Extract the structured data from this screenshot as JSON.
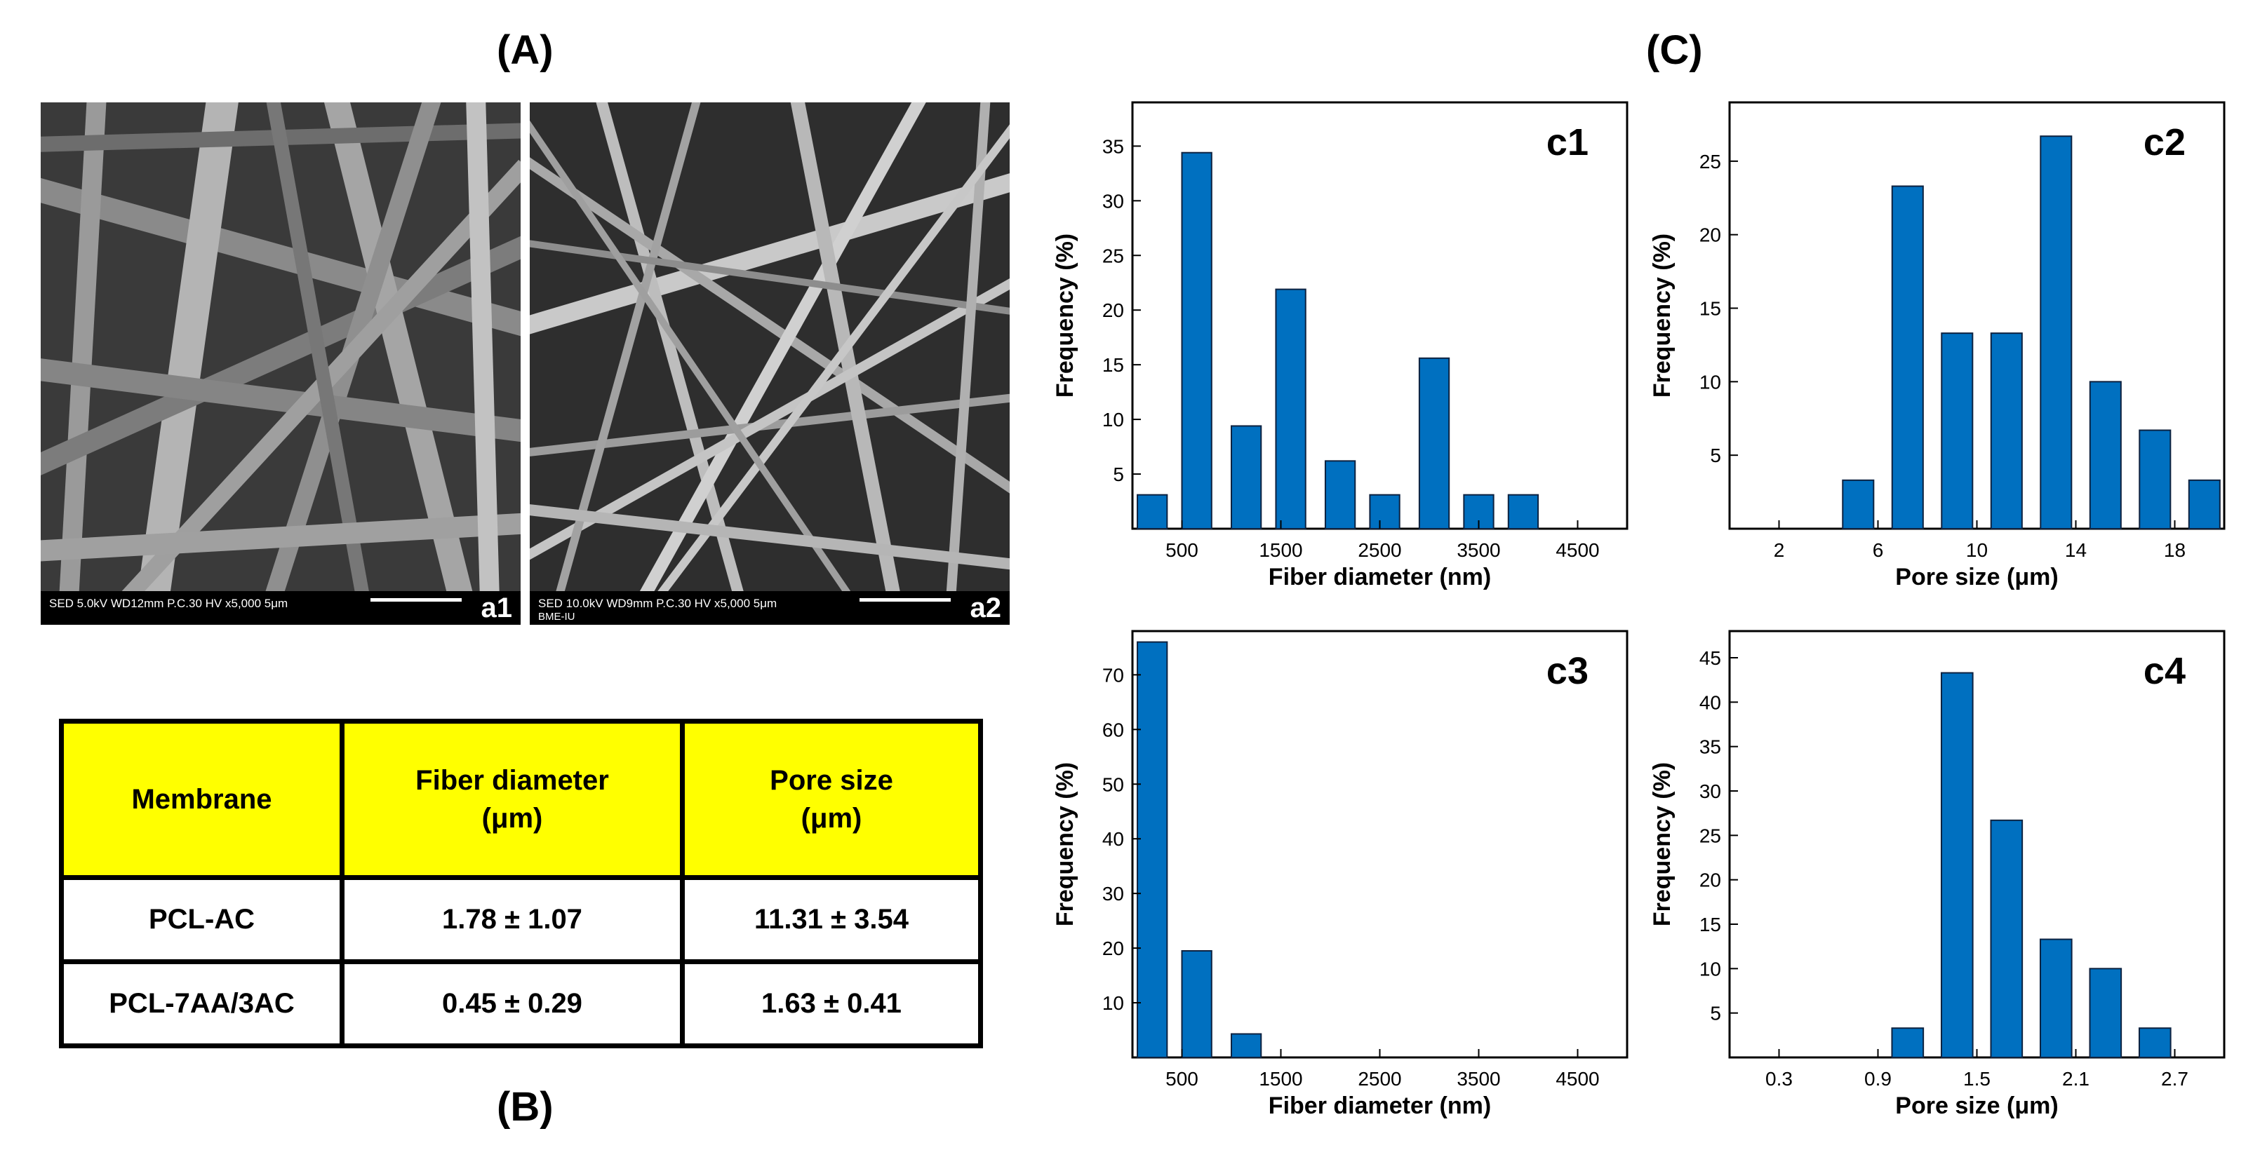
{
  "labels": {
    "A": "(A)",
    "B": "(B)",
    "C": "(C)"
  },
  "sem": [
    {
      "letter": "a1",
      "info": "SED 5.0kV  WD12mm P.C.30  HV     x5,000      5μm",
      "info2": ""
    },
    {
      "letter": "a2",
      "info": "SED 10.0kV WD9mm   P.C.30  HV     x5,000      5μm",
      "info2": "BME-IU"
    }
  ],
  "table": {
    "headers": [
      "Membrane",
      "Fiber diameter",
      "(μm)",
      "Pore size",
      "(μm)"
    ],
    "rows": [
      [
        "PCL-AC",
        "1.78 ± 1.07",
        "11.31 ± 3.54"
      ],
      [
        "PCL-7AA/3AC",
        "0.45 ± 0.29",
        "1.63 ± 0.41"
      ]
    ]
  },
  "colors": {
    "bar": "#0070c0",
    "bar_edge": "#0d2240",
    "table_header": "#ffff00"
  },
  "chart_data": [
    {
      "type": "bar",
      "id": "c1",
      "panel_label": "c1",
      "xlabel": "Fiber diameter (nm)",
      "ylabel": "Frequency (%)",
      "xlim": [
        0,
        5000
      ],
      "ylim": [
        0,
        39
      ],
      "xticks": [
        500,
        1500,
        2500,
        3500,
        4500
      ],
      "yticks": [
        5,
        10,
        15,
        20,
        25,
        30,
        35
      ],
      "bin_width": 300,
      "x": [
        200,
        650,
        1150,
        1600,
        2100,
        2550,
        3050,
        3500,
        3950,
        4400
      ],
      "values": [
        3.1,
        34.4,
        9.4,
        21.9,
        6.2,
        3.1,
        15.6,
        3.1,
        3.1,
        0
      ]
    },
    {
      "type": "bar",
      "id": "c2",
      "panel_label": "c2",
      "xlabel": "Pore size (μm)",
      "ylabel": "Frequency (%)",
      "xlim": [
        0,
        20
      ],
      "ylim": [
        0,
        29
      ],
      "xticks": [
        2,
        6,
        10,
        14,
        18
      ],
      "yticks": [
        5,
        10,
        15,
        20,
        25
      ],
      "bin_width": 1.25,
      "x": [
        1.2,
        3.2,
        5.2,
        7.2,
        9.2,
        11.2,
        13.2,
        15.2,
        17.2,
        19.2
      ],
      "values": [
        0,
        0,
        3.3,
        23.3,
        13.3,
        13.3,
        26.7,
        10,
        6.7,
        3.3
      ]
    },
    {
      "type": "bar",
      "id": "c3",
      "panel_label": "c3",
      "xlabel": "Fiber diameter (nm)",
      "ylabel": "Frequency (%)",
      "xlim": [
        0,
        5000
      ],
      "ylim": [
        0,
        78
      ],
      "xticks": [
        500,
        1500,
        2500,
        3500,
        4500
      ],
      "yticks": [
        10,
        20,
        30,
        40,
        50,
        60,
        70
      ],
      "bin_width": 300,
      "x": [
        200,
        650,
        1150,
        1600,
        2100,
        2550,
        3050,
        3500,
        3950,
        4400
      ],
      "values": [
        76,
        19.5,
        4.3,
        0,
        0,
        0,
        0,
        0,
        0,
        0
      ]
    },
    {
      "type": "bar",
      "id": "c4",
      "panel_label": "c4",
      "xlabel": "Pore size (μm)",
      "ylabel": "Frequency (%)",
      "xlim": [
        0,
        3.0
      ],
      "ylim": [
        0,
        48
      ],
      "xticks": [
        0.3,
        0.9,
        1.5,
        2.1,
        2.7
      ],
      "yticks": [
        5,
        10,
        15,
        20,
        25,
        30,
        35,
        40,
        45
      ],
      "xtick_labels": [
        "0.3",
        "0.9",
        "1.5",
        "2.1",
        "2.7"
      ],
      "bin_width": 0.19,
      "x": [
        0.18,
        0.48,
        0.78,
        1.08,
        1.38,
        1.68,
        1.98,
        2.28,
        2.58,
        2.88
      ],
      "values": [
        0,
        0,
        0,
        3.3,
        43.3,
        26.7,
        13.3,
        10,
        3.3,
        0
      ]
    }
  ]
}
